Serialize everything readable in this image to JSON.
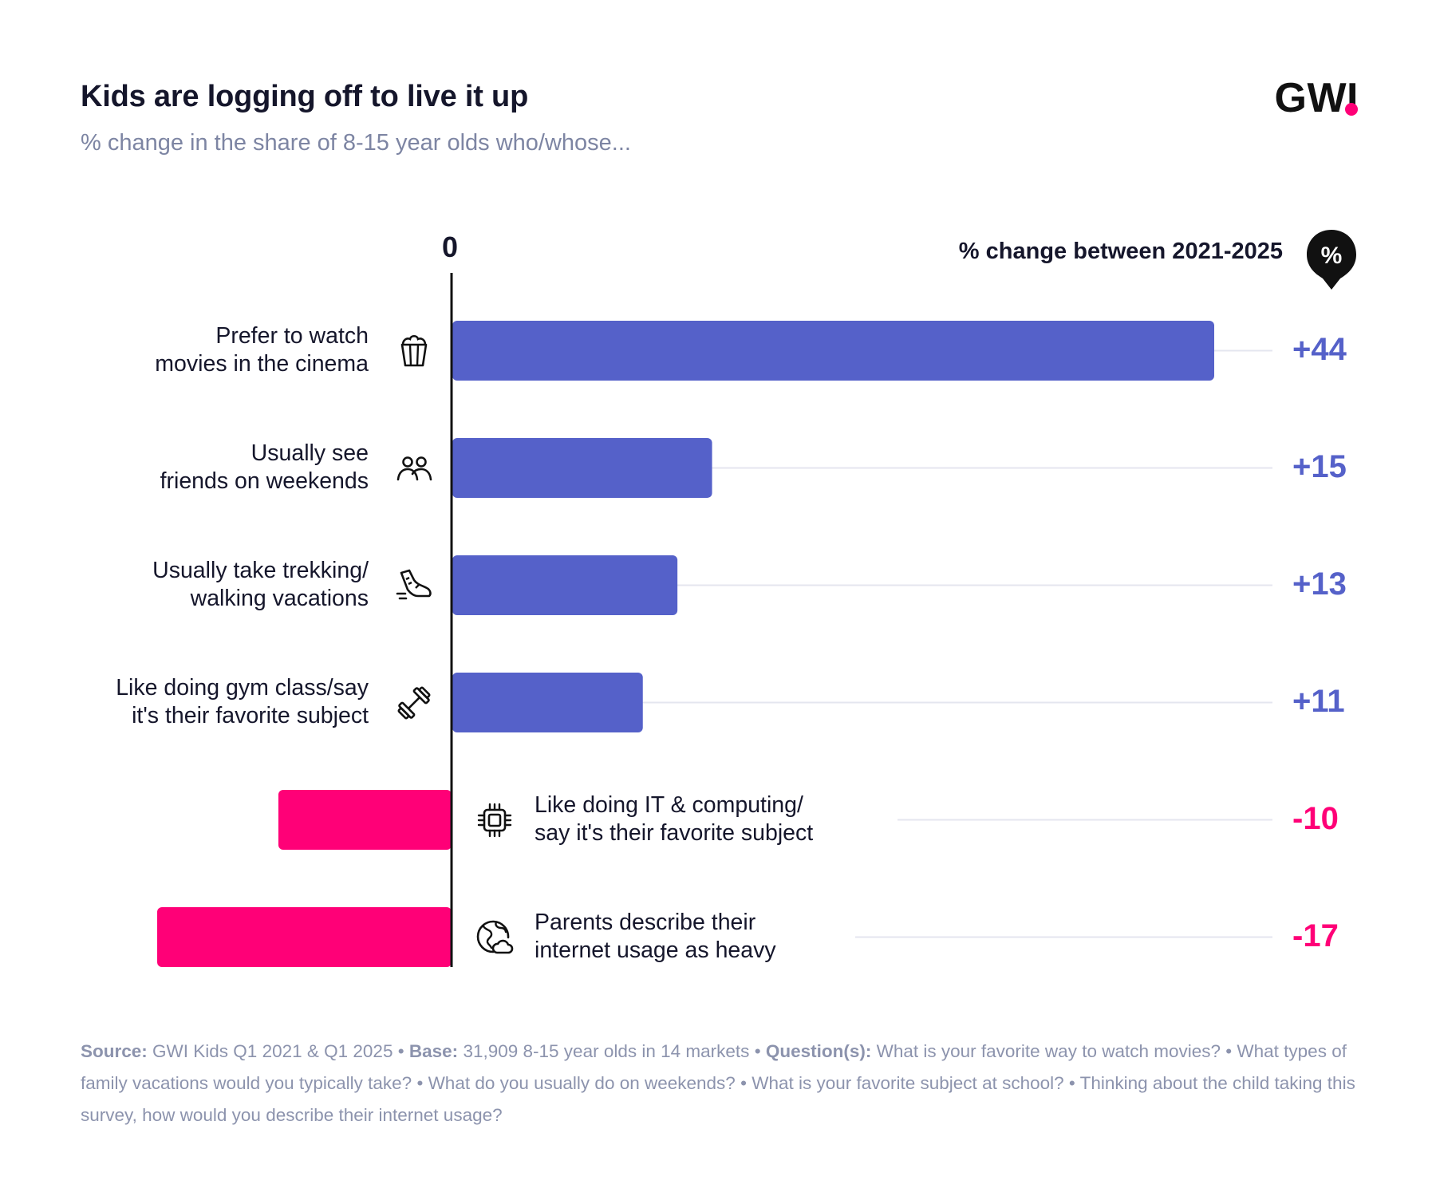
{
  "title": "Kids are logging off to live it up",
  "subtitle": "% change in the share of 8-15 year olds who/whose...",
  "logo": "GWI",
  "zero_label": "0",
  "change_header": "% change between 2021-2025",
  "pin_symbol": "%",
  "colors": {
    "positive": "#5561c9",
    "negative": "#ff0077",
    "grid": "#e4e6ef"
  },
  "chart_data": {
    "type": "bar",
    "orientation": "horizontal",
    "title": "Kids are logging off to live it up",
    "subtitle": "% change in the share of 8-15 year olds who/whose...",
    "value_label": "% change between 2021-2025",
    "xlim": [
      -18,
      45
    ],
    "categories": [
      "Prefer to watch movies in the cinema",
      "Usually see friends on weekends",
      "Usually take trekking/ walking vacations",
      "Like doing gym class/say it's their favorite subject",
      "Like doing IT & computing/ say it's their favorite subject",
      "Parents describe their internet usage as heavy"
    ],
    "values": [
      44,
      15,
      13,
      11,
      -10,
      -17
    ],
    "value_labels": [
      "+44",
      "+15",
      "+13",
      "+11",
      "-10",
      "-17"
    ]
  },
  "rows": [
    {
      "line1": "Prefer to watch",
      "line2": "movies in the cinema",
      "icon": "popcorn-icon"
    },
    {
      "line1": "Usually see",
      "line2": "friends on weekends",
      "icon": "friends-icon"
    },
    {
      "line1": "Usually take trekking/",
      "line2": "walking vacations",
      "icon": "shoe-icon"
    },
    {
      "line1": "Like doing gym class/say",
      "line2": "it's their favorite subject",
      "icon": "dumbbell-icon"
    },
    {
      "line1": "Like doing IT & computing/",
      "line2": "say it's their favorite subject",
      "icon": "chip-icon"
    },
    {
      "line1": "Parents describe their",
      "line2": "internet usage as heavy",
      "icon": "globe-icon"
    }
  ],
  "footnote": {
    "source_label": "Source:",
    "source": "GWI Kids Q1 2021 & Q1 2025",
    "sep1": "•",
    "base_label": "Base:",
    "base": "31,909 8-15 year olds in 14 markets",
    "sep2": "•",
    "question_label": "Question(s):",
    "questions": "What is your favorite way to watch movies? • What types of family vacations would you typically take? • What do you usually do on weekends? • What is your favorite subject at school? • Thinking about the child taking this survey, how would you describe their internet usage?"
  }
}
